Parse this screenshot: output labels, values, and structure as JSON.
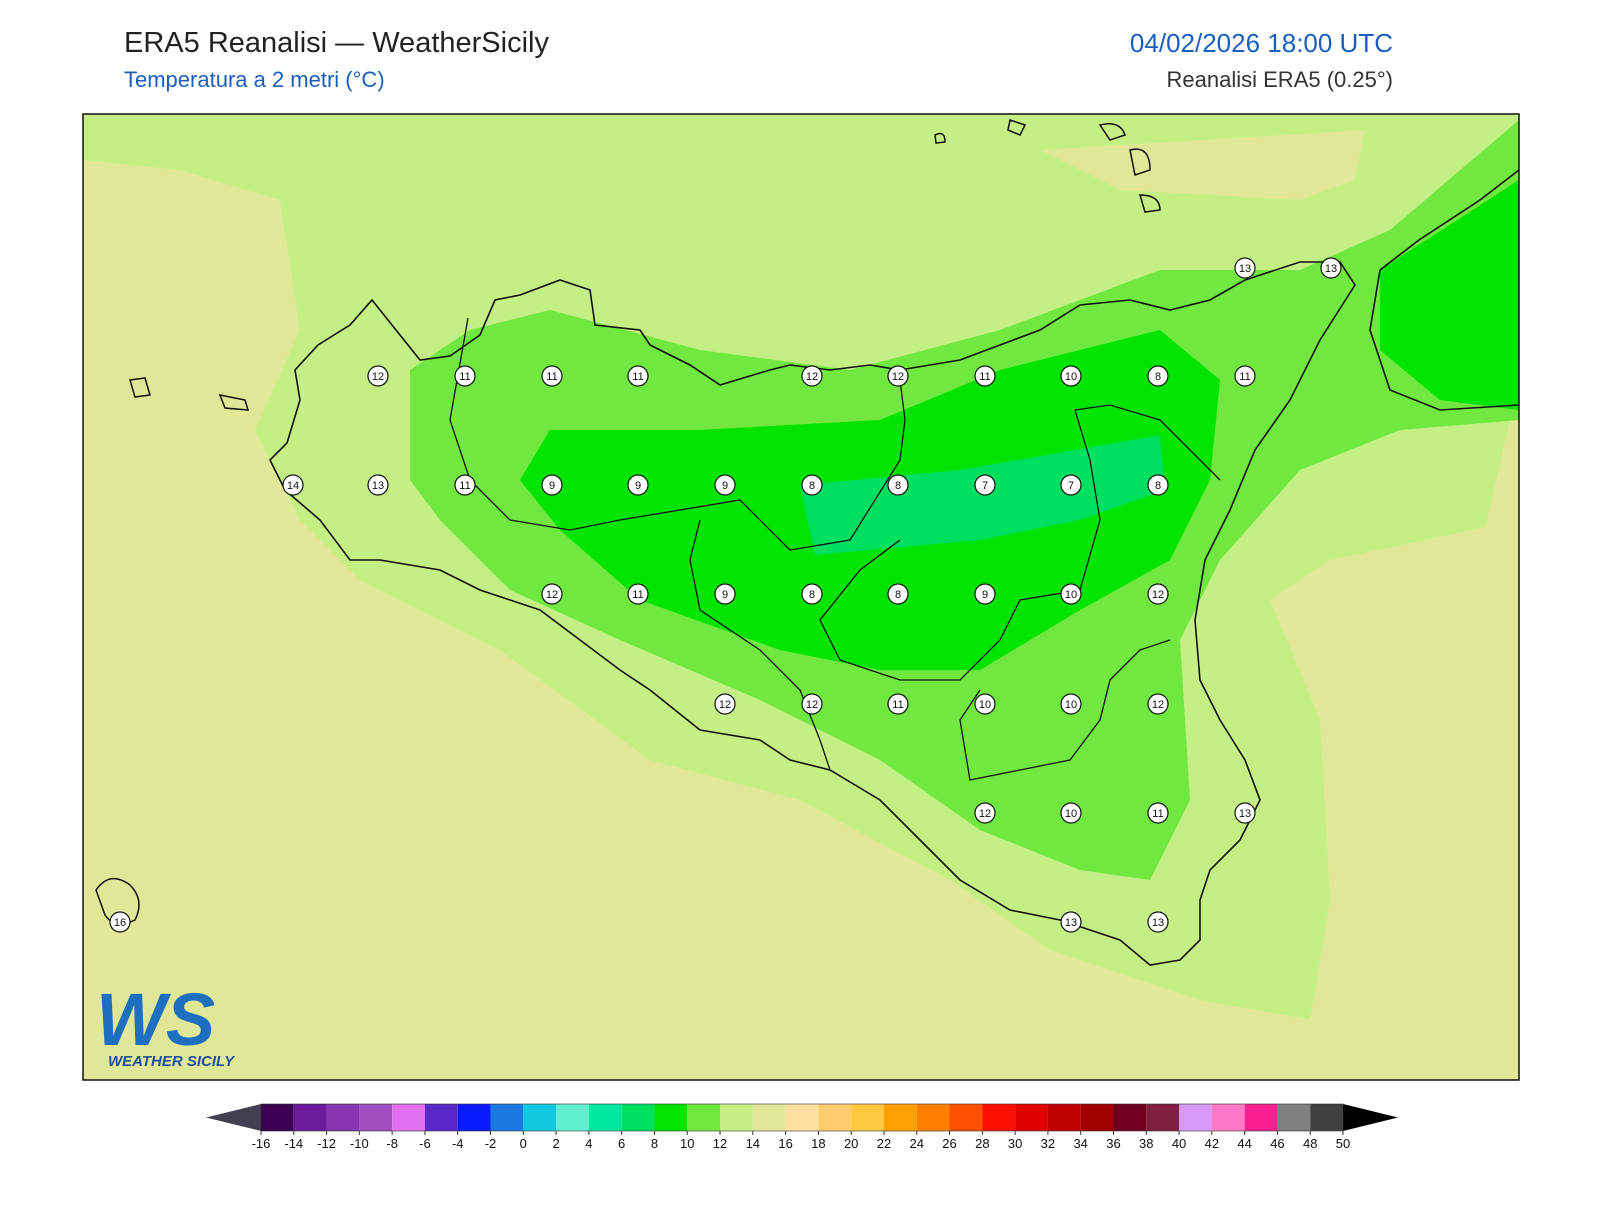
{
  "header": {
    "title": "ERA5 Reanalisi — WeatherSicily",
    "subtitle": "Temperatura a 2 metri (°C)",
    "datetime": "04/02/2026 18:00 UTC",
    "source": "Reanalisi ERA5 (0.25°)"
  },
  "map": {
    "points": [
      12,
      11,
      11,
      11,
      12,
      12,
      11,
      10,
      8,
      11,
      14,
      13,
      11,
      9,
      9,
      9,
      8,
      8,
      7,
      7,
      8,
      12,
      11,
      9,
      8,
      8,
      9,
      10,
      12,
      12,
      12,
      11,
      10,
      10,
      12,
      12,
      10,
      11,
      13,
      13,
      13,
      16,
      13,
      13
    ]
  },
  "colorbar": {
    "ticks": [
      -16,
      -14,
      -12,
      -10,
      -8,
      -6,
      -4,
      -2,
      0,
      2,
      4,
      6,
      8,
      10,
      12,
      14,
      16,
      18,
      20,
      22,
      24,
      26,
      28,
      30,
      32,
      34,
      36,
      38,
      40,
      42,
      44,
      46,
      48,
      50
    ],
    "colors": [
      "#3c0055",
      "#6a1a9a",
      "#8a35b0",
      "#a050c0",
      "#e070ee",
      "#5a28c8",
      "#0a1aff",
      "#1a78e0",
      "#10c8e0",
      "#60f0d0",
      "#00e8a0",
      "#00e060",
      "#00e400",
      "#70e840",
      "#c3ef85",
      "#e0e897",
      "#ffe0a0",
      "#ffcc70",
      "#ffc840",
      "#ffa000",
      "#ff8000",
      "#ff5000",
      "#ff1000",
      "#e00000",
      "#c00000",
      "#a00000",
      "#700020",
      "#802040",
      "#d898f8",
      "#ff78c8",
      "#f82090",
      "#808080",
      "#404040"
    ],
    "under_color": "#404050",
    "over_color": "#000000"
  },
  "logo": {
    "mark": "WS",
    "text": "WEATHER SICILY"
  }
}
